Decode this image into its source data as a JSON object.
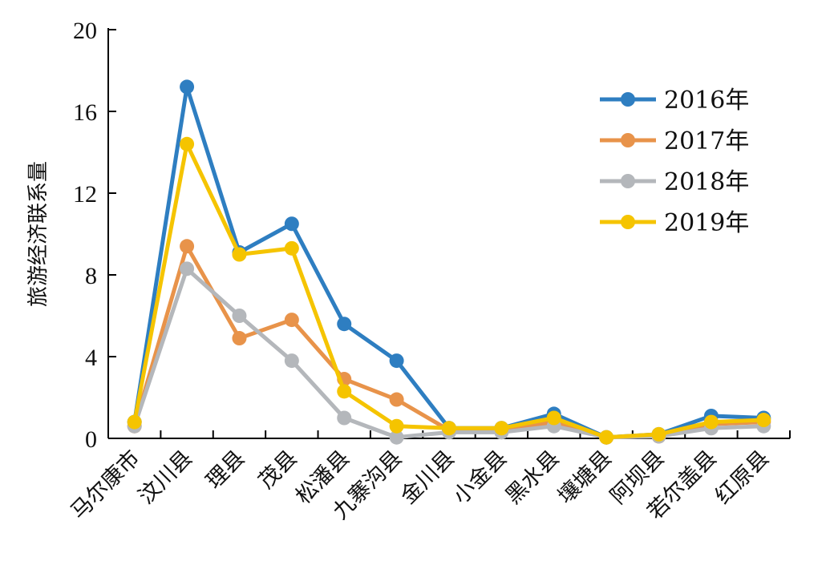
{
  "chart_data": {
    "type": "line",
    "title": "",
    "xlabel": "",
    "ylabel": "旅游经济联系量",
    "ylim": [
      0,
      20
    ],
    "yticks": [
      "0",
      "4",
      "8",
      "12",
      "16",
      "20"
    ],
    "grid": false,
    "legend_position": "top-right",
    "categories": [
      "马尔康市",
      "汶川县",
      "理县",
      "茂县",
      "松潘县",
      "九寨沟县",
      "金川县",
      "小金县",
      "黑水县",
      "壤塘县",
      "阿坝县",
      "若尔盖县",
      "红原县"
    ],
    "series": [
      {
        "name": "2016年",
        "color": "#2E7EC1",
        "values": [
          0.8,
          17.2,
          9.1,
          10.5,
          5.6,
          3.8,
          0.5,
          0.5,
          1.2,
          0.05,
          0.2,
          1.1,
          1.0
        ]
      },
      {
        "name": "2017年",
        "color": "#E8934A",
        "values": [
          0.6,
          9.4,
          4.9,
          5.8,
          2.9,
          1.9,
          0.4,
          0.4,
          0.8,
          0.05,
          0.1,
          0.7,
          0.8
        ]
      },
      {
        "name": "2018年",
        "color": "#B4B7BB",
        "values": [
          0.6,
          8.3,
          6.0,
          3.8,
          1.0,
          0.05,
          0.3,
          0.3,
          0.6,
          0.05,
          0.1,
          0.5,
          0.6
        ]
      },
      {
        "name": "2019年",
        "color": "#F5C400",
        "values": [
          0.8,
          14.4,
          9.0,
          9.3,
          2.3,
          0.6,
          0.5,
          0.5,
          1.0,
          0.05,
          0.2,
          0.8,
          0.9
        ]
      }
    ]
  }
}
